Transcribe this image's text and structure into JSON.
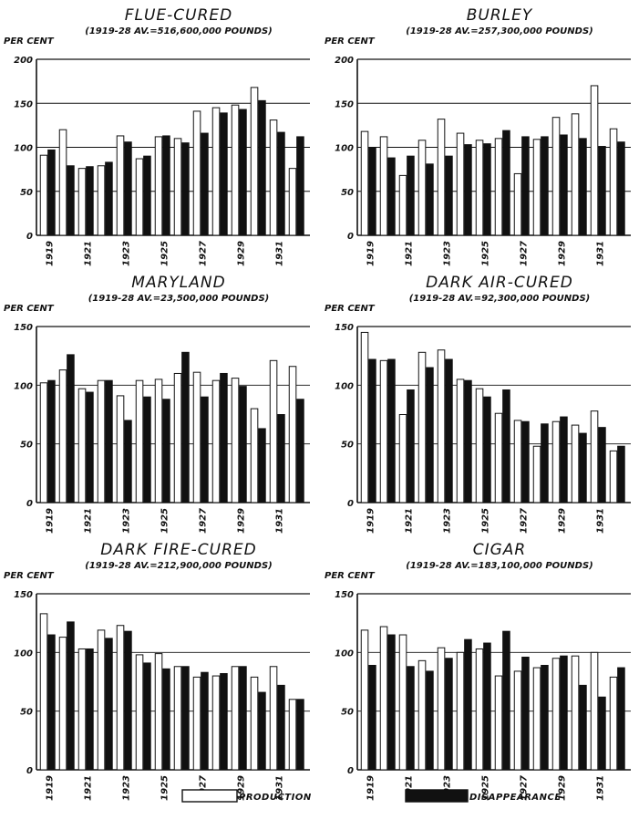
{
  "legend": {
    "production_label": "PRODUCTION",
    "disappearance_label": "DISAPPEARANCE",
    "production_color": "#ffffff",
    "disappearance_color": "#111111"
  },
  "chart_data": [
    {
      "type": "bar",
      "title": "FLUE-CURED",
      "subtitle": "(1919-28 AV.=516,600,000 POUNDS)",
      "ylabel": "PER CENT",
      "ylim": [
        0,
        200
      ],
      "yticks": [
        0,
        50,
        100,
        150,
        200
      ],
      "categories": [
        1919,
        1920,
        1921,
        1922,
        1923,
        1924,
        1925,
        1926,
        1927,
        1928,
        1929,
        1930,
        1931,
        1932
      ],
      "xtick_labels": [
        "1919",
        "1921",
        "1923",
        "1925",
        "1927",
        "1929",
        "1931"
      ],
      "series": [
        {
          "name": "PRODUCTION",
          "values": [
            91,
            120,
            76,
            79,
            113,
            87,
            112,
            110,
            141,
            145,
            148,
            168,
            131,
            76
          ]
        },
        {
          "name": "DISAPPEARANCE",
          "values": [
            97,
            79,
            78,
            83,
            106,
            90,
            113,
            105,
            116,
            139,
            143,
            153,
            117,
            112
          ]
        }
      ]
    },
    {
      "type": "bar",
      "title": "BURLEY",
      "subtitle": "(1919-28 AV.=257,300,000 POUNDS)",
      "ylabel": "PER CENT",
      "ylim": [
        0,
        200
      ],
      "yticks": [
        0,
        50,
        100,
        150,
        200
      ],
      "categories": [
        1919,
        1920,
        1921,
        1922,
        1923,
        1924,
        1925,
        1926,
        1927,
        1928,
        1929,
        1930,
        1931,
        1932
      ],
      "xtick_labels": [
        "1919",
        "1921",
        "1923",
        "1925",
        "1927",
        "1929",
        "1931"
      ],
      "series": [
        {
          "name": "PRODUCTION",
          "values": [
            118,
            112,
            68,
            108,
            132,
            116,
            108,
            110,
            70,
            109,
            134,
            138,
            170,
            121
          ]
        },
        {
          "name": "DISAPPEARANCE",
          "values": [
            100,
            88,
            90,
            81,
            90,
            103,
            104,
            119,
            112,
            112,
            114,
            110,
            101,
            106
          ]
        }
      ]
    },
    {
      "type": "bar",
      "title": "MARYLAND",
      "subtitle": "(1919-28 AV.=23,500,000 POUNDS)",
      "ylabel": "PER CENT",
      "ylim": [
        0,
        150
      ],
      "yticks": [
        0,
        50,
        100,
        150
      ],
      "categories": [
        1919,
        1920,
        1921,
        1922,
        1923,
        1924,
        1925,
        1926,
        1927,
        1928,
        1929,
        1930,
        1931,
        1932
      ],
      "xtick_labels": [
        "1919",
        "1921",
        "1923",
        "1925",
        "1927",
        "1929",
        "1931"
      ],
      "series": [
        {
          "name": "PRODUCTION",
          "values": [
            102,
            113,
            97,
            104,
            91,
            104,
            105,
            110,
            111,
            104,
            106,
            80,
            121,
            116
          ]
        },
        {
          "name": "DISAPPEARANCE",
          "values": [
            104,
            126,
            94,
            104,
            70,
            90,
            88,
            128,
            90,
            110,
            99,
            63,
            75,
            88
          ]
        }
      ]
    },
    {
      "type": "bar",
      "title": "DARK AIR-CURED",
      "subtitle": "(1919-28 AV.=92,300,000 POUNDS)",
      "ylabel": "PER CENT",
      "ylim": [
        0,
        150
      ],
      "yticks": [
        0,
        50,
        100,
        150
      ],
      "categories": [
        1919,
        1920,
        1921,
        1922,
        1923,
        1924,
        1925,
        1926,
        1927,
        1928,
        1929,
        1930,
        1931,
        1932
      ],
      "xtick_labels": [
        "1919",
        "1921",
        "1923",
        "1925",
        "1927",
        "1929",
        "1931"
      ],
      "series": [
        {
          "name": "PRODUCTION",
          "values": [
            145,
            121,
            75,
            128,
            130,
            105,
            97,
            76,
            70,
            48,
            69,
            66,
            78,
            44
          ]
        },
        {
          "name": "DISAPPEARANCE",
          "values": [
            122,
            122,
            96,
            115,
            122,
            104,
            90,
            96,
            69,
            67,
            73,
            59,
            64,
            48
          ]
        }
      ]
    },
    {
      "type": "bar",
      "title": "DARK FIRE-CURED",
      "subtitle": "(1919-28 AV.=212,900,000 POUNDS)",
      "ylabel": "PER CENT",
      "ylim": [
        0,
        150
      ],
      "yticks": [
        0,
        50,
        100,
        150
      ],
      "categories": [
        1919,
        1920,
        1921,
        1922,
        1923,
        1924,
        1925,
        1926,
        1927,
        1928,
        1929,
        1930,
        1931,
        1932
      ],
      "xtick_labels": [
        "1919",
        "1921",
        "1923",
        "1925",
        "1927",
        "1929",
        "1931"
      ],
      "series": [
        {
          "name": "PRODUCTION",
          "values": [
            133,
            113,
            103,
            119,
            123,
            98,
            99,
            88,
            79,
            80,
            88,
            79,
            88,
            60
          ]
        },
        {
          "name": "DISAPPEARANCE",
          "values": [
            115,
            126,
            103,
            112,
            118,
            91,
            86,
            88,
            83,
            82,
            88,
            66,
            72,
            60
          ]
        }
      ]
    },
    {
      "type": "bar",
      "title": "CIGAR",
      "subtitle": "(1919-28 AV.=183,100,000 POUNDS)",
      "ylabel": "PER CENT",
      "ylim": [
        0,
        150
      ],
      "yticks": [
        0,
        50,
        100,
        150
      ],
      "categories": [
        1919,
        1920,
        1921,
        1922,
        1923,
        1924,
        1925,
        1926,
        1927,
        1928,
        1929,
        1930,
        1931,
        1932
      ],
      "xtick_labels": [
        "1919",
        "1921",
        "1923",
        "1925",
        "1927",
        "1929",
        "1931"
      ],
      "series": [
        {
          "name": "PRODUCTION",
          "values": [
            119,
            122,
            115,
            93,
            104,
            100,
            103,
            80,
            84,
            87,
            95,
            97,
            100,
            79
          ]
        },
        {
          "name": "DISAPPEARANCE",
          "values": [
            89,
            115,
            88,
            84,
            95,
            111,
            108,
            118,
            96,
            89,
            97,
            72,
            62,
            87
          ]
        }
      ]
    }
  ]
}
